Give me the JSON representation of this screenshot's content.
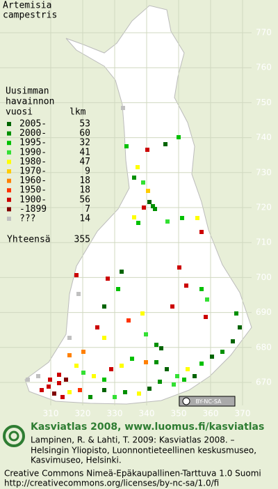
{
  "map": {
    "title": [
      "Artemisia",
      "campestris"
    ],
    "y_grid_labels": [
      770,
      760,
      750,
      740,
      730,
      720,
      710,
      700,
      690,
      680,
      670
    ],
    "x_grid_labels": [
      310,
      320,
      330,
      340,
      350,
      360,
      370
    ],
    "legend": {
      "heading": [
        "Uusimman",
        "havainnon"
      ],
      "col_year": "vuosi",
      "col_count": "lkm",
      "rows": [
        {
          "label": "2005-",
          "count": 53,
          "color": "#006400"
        },
        {
          "label": "2000-",
          "count": 60,
          "color": "#009000"
        },
        {
          "label": "1995-",
          "count": 32,
          "color": "#00c000"
        },
        {
          "label": "1990-",
          "count": 41,
          "color": "#33e033"
        },
        {
          "label": "1980-",
          "count": 47,
          "color": "#ffff00"
        },
        {
          "label": "1970-",
          "count": 9,
          "color": "#ffcc00"
        },
        {
          "label": "1960-",
          "count": 18,
          "color": "#ff8000"
        },
        {
          "label": "1950-",
          "count": 18,
          "color": "#ff3300"
        },
        {
          "label": "1900-",
          "count": 56,
          "color": "#cc0000"
        },
        {
          "label": "-1899",
          "count": 7,
          "color": "#800000"
        },
        {
          "label": "???",
          "count": 14,
          "color": "#c0c0c0"
        }
      ],
      "total_label": "Yhteensä",
      "total": 355
    },
    "license_badge": "BY-NC-SA"
  },
  "footer": {
    "title": "Kasviatlas 2008, www.luomus.fi/kasviatlas",
    "citation": [
      "Lampinen, R. & Lahti, T. 2009: Kasviatlas 2008. –",
      "Helsingin Yliopisto, Luonnontieteellinen keskusmuseo,",
      "Kasvimuseo, Helsinki."
    ],
    "license": [
      "Creative Commons Nimeä-Epäkaupallinen-Tarttuva 1.0 Suomi",
      "http://creativecommons.org/licenses/by-nc-sa/1.0/fi"
    ]
  }
}
